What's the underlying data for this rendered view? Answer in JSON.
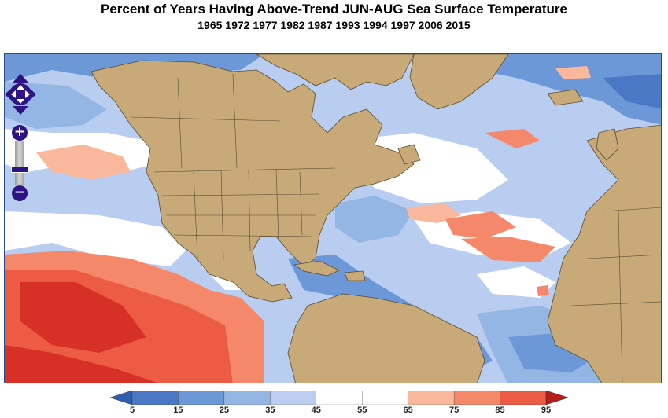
{
  "title": "Percent of Years Having Above-Trend JUN-AUG Sea Surface Temperature",
  "subtitle": "1965 1972 1977 1982 1987 1993 1994 1997 2006 2015",
  "colorbar": {
    "ticks": [
      "5",
      "15",
      "25",
      "35",
      "45",
      "55",
      "65",
      "75",
      "85",
      "95"
    ],
    "colors": [
      "#4a78c4",
      "#6d98d8",
      "#93b6e4",
      "#bccdf0",
      "#ffffff",
      "#ffffff",
      "#f9b79b",
      "#f5876a",
      "#ec5b43",
      "#d73027"
    ],
    "under_color": "#2f5fb0",
    "over_color": "#b51d1d"
  },
  "map_colors": {
    "land": "#c8aa78",
    "border": "#5a4a30",
    "ocean_base": "#b8cdef"
  },
  "nav": {
    "pan_icon": "pan-arrows-icon",
    "zoom_in_label": "+",
    "zoom_out_label": "−"
  }
}
